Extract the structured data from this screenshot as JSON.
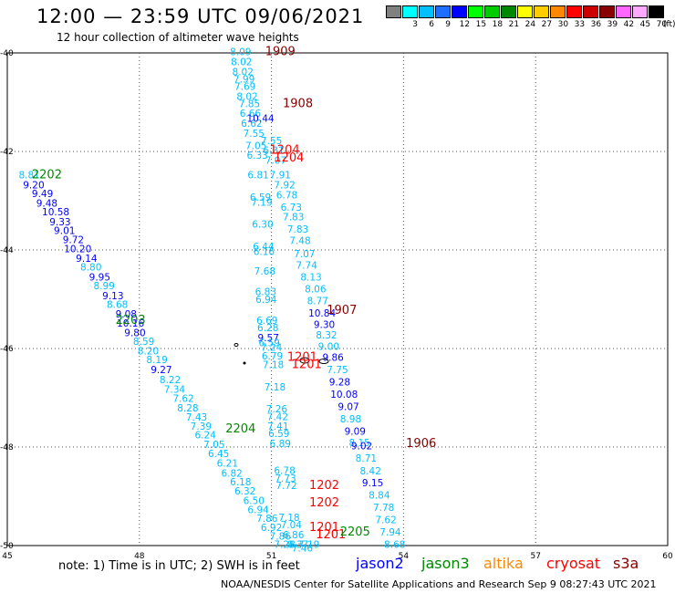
{
  "header": {
    "title": "12:00 — 23:59 UTC 09/06/2021",
    "subtitle": "12 hour collection of altimeter wave heights"
  },
  "color_scale": {
    "unit": "(ft)",
    "bins": [
      {
        "color": "#808080",
        "label": ""
      },
      {
        "color": "#00ffff",
        "label": "3"
      },
      {
        "color": "#00bfff",
        "label": "6"
      },
      {
        "color": "#1e6fff",
        "label": "9"
      },
      {
        "color": "#0000ff",
        "label": "12"
      },
      {
        "color": "#00ff00",
        "label": "15"
      },
      {
        "color": "#00cc00",
        "label": "18"
      },
      {
        "color": "#008800",
        "label": "21"
      },
      {
        "color": "#ffff00",
        "label": "24"
      },
      {
        "color": "#ffcc00",
        "label": "27"
      },
      {
        "color": "#ff8800",
        "label": "30"
      },
      {
        "color": "#ff0000",
        "label": "33"
      },
      {
        "color": "#cc0000",
        "label": "36"
      },
      {
        "color": "#880000",
        "label": "39"
      },
      {
        "color": "#ff66ff",
        "label": "42"
      },
      {
        "color": "#ffaaff",
        "label": "45"
      },
      {
        "color": "#000000",
        "label": "70"
      }
    ]
  },
  "map": {
    "lon_ticks": [
      "45",
      "48",
      "51",
      "54",
      "57",
      "60"
    ],
    "lat_ticks": [
      "-40",
      "-42",
      "-44",
      "-46",
      "-48",
      "-50"
    ],
    "time_labels": [
      {
        "text": "1909",
        "lon": 51.2,
        "lat": -40.05,
        "color": "#880000"
      },
      {
        "text": "1908",
        "lon": 51.6,
        "lat": -41.1,
        "color": "#880000"
      },
      {
        "text": "1204",
        "lon": 51.3,
        "lat": -42.05,
        "color": "#ff0000"
      },
      {
        "text": "1204",
        "lon": 51.4,
        "lat": -42.2,
        "color": "#ff0000"
      },
      {
        "text": "2202",
        "lon": 45.9,
        "lat": -42.55,
        "color": "#008800"
      },
      {
        "text": "1907",
        "lon": 52.6,
        "lat": -45.3,
        "color": "#880000"
      },
      {
        "text": "2203",
        "lon": 47.8,
        "lat": -45.5,
        "color": "#008800"
      },
      {
        "text": "1201",
        "lon": 51.7,
        "lat": -46.25,
        "color": "#ff0000"
      },
      {
        "text": "1201",
        "lon": 51.8,
        "lat": -46.4,
        "color": "#ff0000"
      },
      {
        "text": "2204",
        "lon": 50.3,
        "lat": -47.7,
        "color": "#008800"
      },
      {
        "text": "1906",
        "lon": 54.4,
        "lat": -48.0,
        "color": "#880000"
      },
      {
        "text": "1202",
        "lon": 52.2,
        "lat": -48.85,
        "color": "#ff0000"
      },
      {
        "text": "1202",
        "lon": 52.2,
        "lat": -49.2,
        "color": "#ff0000"
      },
      {
        "text": "1201",
        "lon": 52.2,
        "lat": -49.7,
        "color": "#ff0000"
      },
      {
        "text": "1201",
        "lon": 52.35,
        "lat": -49.85,
        "color": "#ff0000"
      },
      {
        "text": "2205",
        "lon": 52.9,
        "lat": -49.8,
        "color": "#008800"
      }
    ],
    "tracks": [
      {
        "name": "jason3-track",
        "points": [
          {
            "lon": 45.5,
            "lat": -42.55,
            "v": "8.81",
            "c": "#00bfff"
          },
          {
            "lon": 45.6,
            "lat": -42.75,
            "v": "9.20",
            "c": "#0000ff"
          },
          {
            "lon": 45.8,
            "lat": -42.93,
            "v": "9.49",
            "c": "#0000ff"
          },
          {
            "lon": 45.9,
            "lat": -43.12,
            "v": "9.48",
            "c": "#0000ff"
          },
          {
            "lon": 46.1,
            "lat": -43.3,
            "v": "10.58",
            "c": "#0000ff"
          },
          {
            "lon": 46.2,
            "lat": -43.5,
            "v": "9.33",
            "c": "#0000ff"
          },
          {
            "lon": 46.3,
            "lat": -43.68,
            "v": "9.01",
            "c": "#0000ff"
          },
          {
            "lon": 46.5,
            "lat": -43.86,
            "v": "9.72",
            "c": "#0000ff"
          },
          {
            "lon": 46.6,
            "lat": -44.05,
            "v": "10.20",
            "c": "#0000ff"
          },
          {
            "lon": 46.8,
            "lat": -44.24,
            "v": "9.14",
            "c": "#0000ff"
          },
          {
            "lon": 46.9,
            "lat": -44.42,
            "v": "8.80",
            "c": "#00bfff"
          },
          {
            "lon": 47.1,
            "lat": -44.62,
            "v": "9.95",
            "c": "#0000ff"
          },
          {
            "lon": 47.2,
            "lat": -44.8,
            "v": "8.99",
            "c": "#00bfff"
          },
          {
            "lon": 47.4,
            "lat": -45.0,
            "v": "9.13",
            "c": "#0000ff"
          },
          {
            "lon": 47.5,
            "lat": -45.18,
            "v": "8.68",
            "c": "#00bfff"
          },
          {
            "lon": 47.7,
            "lat": -45.37,
            "v": "9.08",
            "c": "#0000ff"
          },
          {
            "lon": 47.8,
            "lat": -45.56,
            "v": "10.16",
            "c": "#0000ff"
          },
          {
            "lon": 47.9,
            "lat": -45.75,
            "v": "9.80",
            "c": "#0000ff"
          },
          {
            "lon": 48.1,
            "lat": -45.93,
            "v": "8.59",
            "c": "#00bfff"
          },
          {
            "lon": 48.2,
            "lat": -46.12,
            "v": "8.20",
            "c": "#00bfff"
          },
          {
            "lon": 48.4,
            "lat": -46.3,
            "v": "8.19",
            "c": "#00bfff"
          },
          {
            "lon": 48.5,
            "lat": -46.5,
            "v": "9.27",
            "c": "#0000ff"
          },
          {
            "lon": 48.7,
            "lat": -46.7,
            "v": "8.22",
            "c": "#00bfff"
          },
          {
            "lon": 48.8,
            "lat": -46.9,
            "v": "7.34",
            "c": "#00bfff"
          },
          {
            "lon": 49.0,
            "lat": -47.08,
            "v": "7.62",
            "c": "#00bfff"
          },
          {
            "lon": 49.1,
            "lat": -47.28,
            "v": "8.28",
            "c": "#00bfff"
          },
          {
            "lon": 49.3,
            "lat": -47.46,
            "v": "7.43",
            "c": "#00bfff"
          },
          {
            "lon": 49.4,
            "lat": -47.65,
            "v": "7.39",
            "c": "#00bfff"
          },
          {
            "lon": 49.5,
            "lat": -47.82,
            "v": "6.24",
            "c": "#00bfff"
          },
          {
            "lon": 49.7,
            "lat": -48.02,
            "v": "7.05",
            "c": "#00bfff"
          },
          {
            "lon": 49.8,
            "lat": -48.2,
            "v": "6.45",
            "c": "#00bfff"
          },
          {
            "lon": 50.0,
            "lat": -48.4,
            "v": "6.21",
            "c": "#00bfff"
          },
          {
            "lon": 50.1,
            "lat": -48.6,
            "v": "6.82",
            "c": "#00bfff"
          },
          {
            "lon": 50.3,
            "lat": -48.78,
            "v": "6.18",
            "c": "#00bfff"
          },
          {
            "lon": 50.4,
            "lat": -48.96,
            "v": "6.32",
            "c": "#00bfff"
          },
          {
            "lon": 50.6,
            "lat": -49.16,
            "v": "6.50",
            "c": "#00bfff"
          },
          {
            "lon": 50.7,
            "lat": -49.34,
            "v": "6.94",
            "c": "#00bfff"
          },
          {
            "lon": 50.9,
            "lat": -49.52,
            "v": "7.86",
            "c": "#00bfff"
          },
          {
            "lon": 51.0,
            "lat": -49.7,
            "v": "6.92",
            "c": "#00bfff"
          },
          {
            "lon": 51.2,
            "lat": -49.88,
            "v": "7.86",
            "c": "#00bfff"
          },
          {
            "lon": 51.3,
            "lat": -50.05,
            "v": "7.28",
            "c": "#00bfff"
          }
        ]
      },
      {
        "name": "cryosat-track-west",
        "points": [
          {
            "lon": 50.3,
            "lat": -40.05,
            "v": "8.09",
            "c": "#00bfff"
          },
          {
            "lon": 50.32,
            "lat": -40.25,
            "v": "8.02",
            "c": "#00bfff"
          },
          {
            "lon": 50.35,
            "lat": -40.45,
            "v": "8.02",
            "c": "#00bfff"
          },
          {
            "lon": 50.38,
            "lat": -40.6,
            "v": "7.99",
            "c": "#00bfff"
          },
          {
            "lon": 50.4,
            "lat": -40.75,
            "v": "7.69",
            "c": "#00bfff"
          },
          {
            "lon": 50.45,
            "lat": -40.95,
            "v": "8.02",
            "c": "#00bfff"
          },
          {
            "lon": 50.5,
            "lat": -41.1,
            "v": "7.85",
            "c": "#00bfff"
          },
          {
            "lon": 50.52,
            "lat": -41.3,
            "v": "6.66",
            "c": "#00bfff"
          },
          {
            "lon": 50.55,
            "lat": -41.5,
            "v": "6.62",
            "c": "#00bfff"
          },
          {
            "lon": 50.6,
            "lat": -41.7,
            "v": "7.55",
            "c": "#00bfff"
          },
          {
            "lon": 50.65,
            "lat": -41.95,
            "v": "7.05",
            "c": "#00bfff"
          },
          {
            "lon": 50.68,
            "lat": -42.15,
            "v": "6.33",
            "c": "#00bfff"
          },
          {
            "lon": 50.7,
            "lat": -42.55,
            "v": "6.81",
            "c": "#00bfff"
          },
          {
            "lon": 50.75,
            "lat": -43.0,
            "v": "6.59",
            "c": "#00bfff"
          },
          {
            "lon": 50.78,
            "lat": -43.1,
            "v": "7.19",
            "c": "#00bfff"
          },
          {
            "lon": 50.8,
            "lat": -43.55,
            "v": "6.30",
            "c": "#00bfff"
          },
          {
            "lon": 50.82,
            "lat": -44.0,
            "v": "6.44",
            "c": "#00bfff"
          },
          {
            "lon": 50.83,
            "lat": -44.1,
            "v": "6.16",
            "c": "#00bfff"
          },
          {
            "lon": 50.85,
            "lat": -44.5,
            "v": "7.68",
            "c": "#00bfff"
          },
          {
            "lon": 50.87,
            "lat": -44.92,
            "v": "6.83",
            "c": "#00bfff"
          },
          {
            "lon": 50.88,
            "lat": -45.07,
            "v": "6.94",
            "c": "#00bfff"
          },
          {
            "lon": 50.9,
            "lat": -45.5,
            "v": "6.69",
            "c": "#00bfff"
          },
          {
            "lon": 50.92,
            "lat": -45.65,
            "v": "6.28",
            "c": "#00bfff"
          },
          {
            "lon": 50.93,
            "lat": -45.85,
            "v": "9.57",
            "c": "#0000ff"
          },
          {
            "lon": 50.95,
            "lat": -45.95,
            "v": "6.59",
            "c": "#00bfff"
          },
          {
            "lon": 51.0,
            "lat": -46.05,
            "v": "7.24",
            "c": "#00bfff"
          },
          {
            "lon": 51.02,
            "lat": -46.22,
            "v": "6.79",
            "c": "#00bfff"
          },
          {
            "lon": 51.04,
            "lat": -46.4,
            "v": "7.18",
            "c": "#00bfff"
          },
          {
            "lon": 51.08,
            "lat": -46.85,
            "v": "7.18",
            "c": "#00bfff"
          },
          {
            "lon": 51.12,
            "lat": -47.3,
            "v": "7.26",
            "c": "#00bfff"
          },
          {
            "lon": 51.14,
            "lat": -47.45,
            "v": "7.42",
            "c": "#00bfff"
          },
          {
            "lon": 51.15,
            "lat": -47.65,
            "v": "7.41",
            "c": "#00bfff"
          },
          {
            "lon": 51.17,
            "lat": -47.8,
            "v": "6.59",
            "c": "#00bfff"
          },
          {
            "lon": 51.2,
            "lat": -48.0,
            "v": "6.89",
            "c": "#00bfff"
          },
          {
            "lon": 51.3,
            "lat": -48.55,
            "v": "6.78",
            "c": "#00bfff"
          },
          {
            "lon": 51.32,
            "lat": -48.7,
            "v": "7.73",
            "c": "#00bfff"
          },
          {
            "lon": 51.34,
            "lat": -48.85,
            "v": "7.72",
            "c": "#00bfff"
          },
          {
            "lon": 51.4,
            "lat": -49.5,
            "v": "7.18",
            "c": "#00bfff"
          },
          {
            "lon": 51.45,
            "lat": -49.65,
            "v": "7.04",
            "c": "#00bfff"
          },
          {
            "lon": 51.5,
            "lat": -49.85,
            "v": "6.86",
            "c": "#00bfff"
          },
          {
            "lon": 51.6,
            "lat": -50.05,
            "v": "8.37",
            "c": "#00bfff"
          },
          {
            "lon": 51.7,
            "lat": -50.12,
            "v": "7.46",
            "c": "#00bfff"
          },
          {
            "lon": 51.85,
            "lat": -50.05,
            "v": "7.19",
            "c": "#00bfff"
          }
        ]
      },
      {
        "name": "s3a-track",
        "points": [
          {
            "lon": 50.75,
            "lat": -41.4,
            "v": "10.44",
            "c": "#0000ff"
          },
          {
            "lon": 51.0,
            "lat": -41.85,
            "v": "7.55",
            "c": "#00bfff"
          },
          {
            "lon": 51.05,
            "lat": -42.05,
            "v": "6.31",
            "c": "#00bfff"
          },
          {
            "lon": 51.1,
            "lat": -42.25,
            "v": "7.07",
            "c": "#00bfff"
          },
          {
            "lon": 51.2,
            "lat": -42.55,
            "v": "7.91",
            "c": "#00bfff"
          },
          {
            "lon": 51.3,
            "lat": -42.75,
            "v": "7.92",
            "c": "#00bfff"
          },
          {
            "lon": 51.35,
            "lat": -42.95,
            "v": "6.78",
            "c": "#00bfff"
          },
          {
            "lon": 51.45,
            "lat": -43.2,
            "v": "6.73",
            "c": "#00bfff"
          },
          {
            "lon": 51.5,
            "lat": -43.4,
            "v": "7.83",
            "c": "#00bfff"
          },
          {
            "lon": 51.6,
            "lat": -43.65,
            "v": "7.83",
            "c": "#00bfff"
          },
          {
            "lon": 51.65,
            "lat": -43.88,
            "v": "7.48",
            "c": "#00bfff"
          },
          {
            "lon": 51.75,
            "lat": -44.15,
            "v": "7.07",
            "c": "#00bfff"
          },
          {
            "lon": 51.8,
            "lat": -44.38,
            "v": "7.74",
            "c": "#00bfff"
          },
          {
            "lon": 51.9,
            "lat": -44.62,
            "v": "8.13",
            "c": "#00bfff"
          },
          {
            "lon": 52.0,
            "lat": -44.86,
            "v": "8.06",
            "c": "#00bfff"
          },
          {
            "lon": 52.05,
            "lat": -45.1,
            "v": "8.77",
            "c": "#00bfff"
          },
          {
            "lon": 52.15,
            "lat": -45.35,
            "v": "10.84",
            "c": "#0000ff"
          },
          {
            "lon": 52.2,
            "lat": -45.58,
            "v": "9.30",
            "c": "#0000ff"
          },
          {
            "lon": 52.25,
            "lat": -45.8,
            "v": "8.32",
            "c": "#00bfff"
          },
          {
            "lon": 52.3,
            "lat": -46.03,
            "v": "9.00",
            "c": "#00bfff"
          },
          {
            "lon": 52.4,
            "lat": -46.25,
            "v": "9.86",
            "c": "#0000ff"
          },
          {
            "lon": 52.5,
            "lat": -46.5,
            "v": "7.75",
            "c": "#00bfff"
          },
          {
            "lon": 52.55,
            "lat": -46.75,
            "v": "9.28",
            "c": "#0000ff"
          },
          {
            "lon": 52.65,
            "lat": -47.0,
            "v": "10.08",
            "c": "#0000ff"
          },
          {
            "lon": 52.75,
            "lat": -47.25,
            "v": "9.07",
            "c": "#0000ff"
          },
          {
            "lon": 52.8,
            "lat": -47.5,
            "v": "8.98",
            "c": "#00bfff"
          },
          {
            "lon": 52.9,
            "lat": -47.75,
            "v": "9.09",
            "c": "#0000ff"
          },
          {
            "lon": 53.0,
            "lat": -47.98,
            "v": "8.15",
            "c": "#00bfff"
          },
          {
            "lon": 53.05,
            "lat": -48.05,
            "v": "9.02",
            "c": "#0000ff"
          },
          {
            "lon": 53.15,
            "lat": -48.3,
            "v": "8.71",
            "c": "#00bfff"
          },
          {
            "lon": 53.25,
            "lat": -48.56,
            "v": "8.42",
            "c": "#00bfff"
          },
          {
            "lon": 53.3,
            "lat": -48.8,
            "v": "9.15",
            "c": "#0000ff"
          },
          {
            "lon": 53.45,
            "lat": -49.05,
            "v": "8.84",
            "c": "#00bfff"
          },
          {
            "lon": 53.55,
            "lat": -49.3,
            "v": "7.78",
            "c": "#00bfff"
          },
          {
            "lon": 53.6,
            "lat": -49.55,
            "v": "7.62",
            "c": "#00bfff"
          },
          {
            "lon": 53.7,
            "lat": -49.8,
            "v": "7.94",
            "c": "#00bfff"
          },
          {
            "lon": 53.8,
            "lat": -50.05,
            "v": "8.68",
            "c": "#00bfff"
          }
        ]
      }
    ]
  },
  "footer": {
    "note": "note: 1) Time is in UTC; 2) SWH is in feet",
    "credit": "NOAA/NESDIS Center for Satellite Applications and Research   Sep  9 08:27:43 UTC 2021",
    "legend": [
      {
        "name": "jason2",
        "color": "#0000ff"
      },
      {
        "name": "jason3",
        "color": "#008800"
      },
      {
        "name": "altika",
        "color": "#ff8800"
      },
      {
        "name": "cryosat",
        "color": "#ff0000"
      },
      {
        "name": "s3a",
        "color": "#880000"
      }
    ]
  }
}
